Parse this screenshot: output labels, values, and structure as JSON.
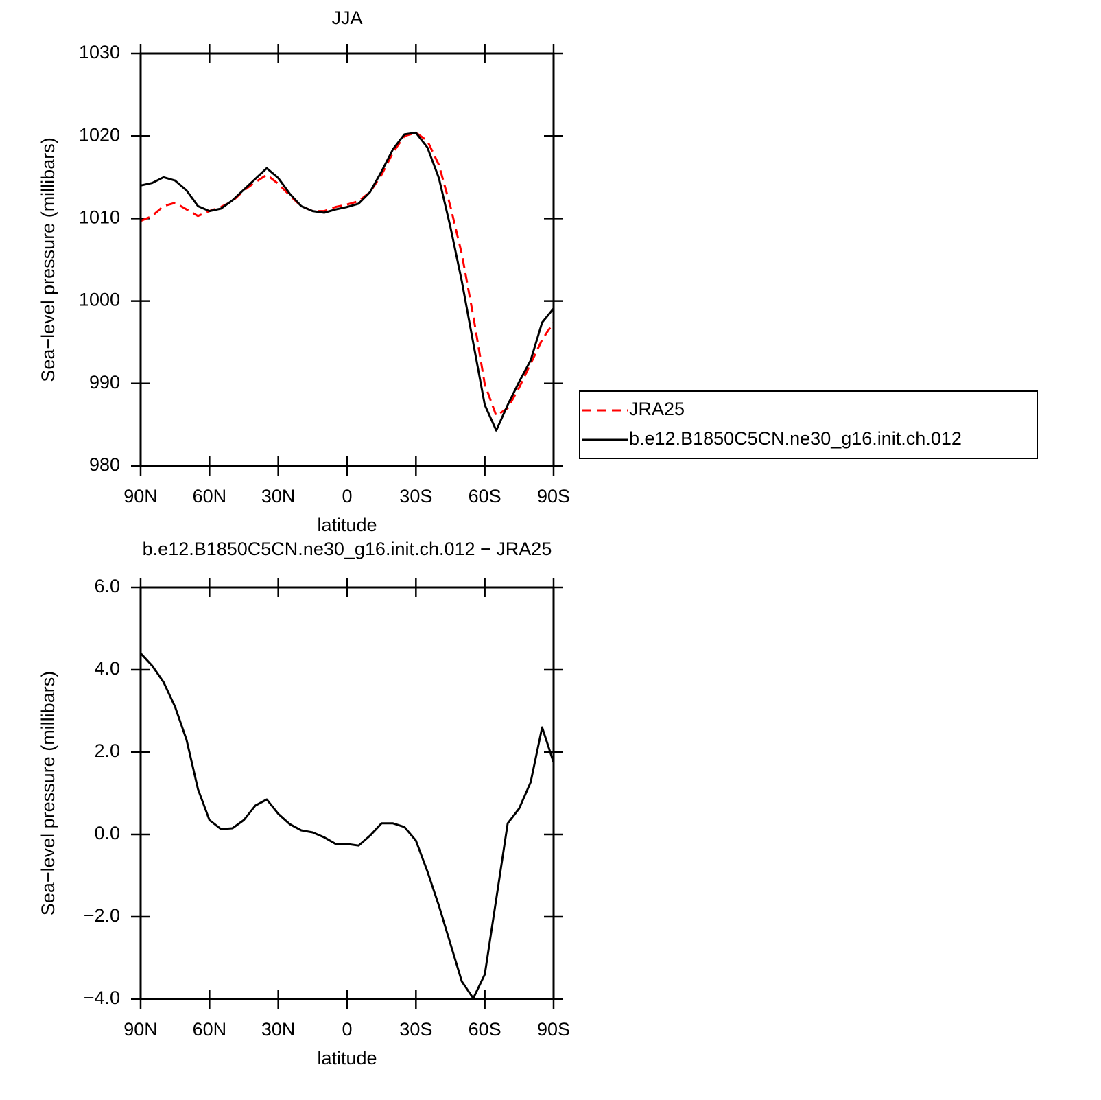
{
  "chart_data": [
    {
      "type": "line",
      "title": "JJA",
      "xlabel": "latitude",
      "ylabel": "Sea−level pressure (millibars)",
      "x": [
        90,
        85,
        80,
        75,
        70,
        65,
        60,
        55,
        50,
        45,
        40,
        35,
        30,
        25,
        20,
        15,
        10,
        5,
        0,
        -5,
        -10,
        -15,
        -20,
        -25,
        -30,
        -35,
        -40,
        -45,
        -50,
        -55,
        -60,
        -65,
        -70,
        -75,
        -80,
        -85,
        -90
      ],
      "series": [
        {
          "name": "JRA25",
          "color": "#ff0000",
          "dash": true,
          "values": [
            1009.7,
            1010.3,
            1011.5,
            1011.9,
            1011.1,
            1010.3,
            1010.9,
            1011.4,
            1012.1,
            1013.4,
            1014.4,
            1015.3,
            1014.2,
            1012.8,
            1011.5,
            1010.9,
            1010.9,
            1011.4,
            1011.7,
            1012.1,
            1013.2,
            1015.3,
            1018.0,
            1020.0,
            1020.4,
            1019.4,
            1016.5,
            1011.5,
            1005.7,
            998.2,
            989.9,
            986.1,
            987.0,
            989.5,
            992.4,
            995.3,
            997.4
          ]
        },
        {
          "name": "b.e12.B1850C5CN.ne30_g16.init.ch.012",
          "color": "#000000",
          "dash": false,
          "values": [
            1014.0,
            1014.3,
            1015.0,
            1014.6,
            1013.4,
            1011.5,
            1010.9,
            1011.2,
            1012.2,
            1013.5,
            1014.8,
            1016.1,
            1014.9,
            1013.0,
            1011.5,
            1010.9,
            1010.7,
            1011.1,
            1011.4,
            1011.8,
            1013.2,
            1015.7,
            1018.4,
            1020.2,
            1020.4,
            1018.6,
            1014.9,
            1009.0,
            1002.4,
            994.9,
            987.4,
            984.3,
            987.4,
            990.2,
            992.8,
            997.4,
            999.1
          ]
        }
      ],
      "xlim": [
        90,
        -90
      ],
      "xticks": [
        {
          "value": 90,
          "label": "90N"
        },
        {
          "value": 60,
          "label": "60N"
        },
        {
          "value": 30,
          "label": "30N"
        },
        0,
        {
          "value": -30,
          "label": "30S"
        },
        {
          "value": -60,
          "label": "60S"
        },
        {
          "value": -90,
          "label": "90S"
        }
      ],
      "ylim": [
        980,
        1030
      ],
      "yticks": [
        980,
        990,
        1000,
        1010,
        1020,
        1030
      ],
      "legend": "right"
    },
    {
      "type": "line",
      "title": "b.e12.B1850C5CN.ne30_g16.init.ch.012 − JRA25",
      "xlabel": "latitude",
      "ylabel": "Sea−level pressure (millibars)",
      "x": [
        90,
        85,
        80,
        75,
        70,
        65,
        60,
        55,
        50,
        45,
        40,
        35,
        30,
        25,
        20,
        15,
        10,
        5,
        0,
        -5,
        -10,
        -15,
        -20,
        -25,
        -30,
        -35,
        -40,
        -45,
        -50,
        -55,
        -60,
        -65,
        -70,
        -75,
        -80,
        -85,
        -90
      ],
      "values": [
        4.4,
        4.1,
        3.7,
        3.1,
        2.3,
        1.1,
        0.35,
        0.13,
        0.15,
        0.35,
        0.7,
        0.85,
        0.5,
        0.25,
        0.1,
        0.05,
        -0.07,
        -0.23,
        -0.23,
        -0.27,
        -0.03,
        0.27,
        0.27,
        0.18,
        -0.15,
        -0.9,
        -1.73,
        -2.65,
        -3.57,
        -3.98,
        -3.4,
        -1.57,
        0.27,
        0.63,
        1.27,
        2.6,
        1.75
      ],
      "color": "#000000",
      "xlim": [
        90,
        -90
      ],
      "xticks": [
        {
          "value": 90,
          "label": "90N"
        },
        {
          "value": 60,
          "label": "60N"
        },
        {
          "value": 30,
          "label": "30N"
        },
        0,
        {
          "value": -30,
          "label": "30S"
        },
        {
          "value": -60,
          "label": "60S"
        },
        {
          "value": -90,
          "label": "90S"
        }
      ],
      "ylim": [
        -4,
        6
      ],
      "yticks": [
        {
          "value": -4,
          "label": "−4.0"
        },
        {
          "value": -2,
          "label": "−2.0"
        },
        {
          "value": 0,
          "label": "0.0"
        },
        {
          "value": 2,
          "label": "2.0"
        },
        {
          "value": 4,
          "label": "4.0"
        },
        {
          "value": 6,
          "label": "6.0"
        }
      ]
    }
  ]
}
